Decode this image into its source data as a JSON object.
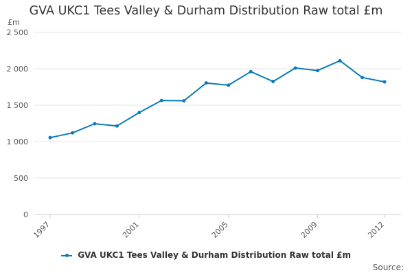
{
  "chart_data": {
    "type": "line",
    "title": "GVA UKC1 Tees Valley & Durham Distribution Raw total £m",
    "ylabel": "£m",
    "xlabel": "",
    "x": [
      1997,
      1998,
      1999,
      2000,
      2001,
      2002,
      2003,
      2004,
      2005,
      2006,
      2007,
      2008,
      2009,
      2010,
      2011,
      2012
    ],
    "x_tick_labels": [
      "1997",
      "2001",
      "2005",
      "2009",
      "2012"
    ],
    "y_ticks": [
      0,
      500,
      1000,
      1500,
      2000,
      2500
    ],
    "y_tick_labels": [
      "0",
      "500",
      "1 000",
      "1 500",
      "2 000",
      "2 500"
    ],
    "ylim": [
      0,
      2500
    ],
    "grid": true,
    "series": [
      {
        "name": "GVA UKC1 Tees Valley & Durham Distribution Raw total £m",
        "color": "#0a7bb8",
        "values": [
          1055,
          1120,
          1245,
          1215,
          1400,
          1565,
          1560,
          1805,
          1775,
          1960,
          1825,
          2010,
          1975,
          2110,
          1880,
          1820
        ]
      }
    ],
    "legend": "bottom-center",
    "source_label": "Source:"
  }
}
